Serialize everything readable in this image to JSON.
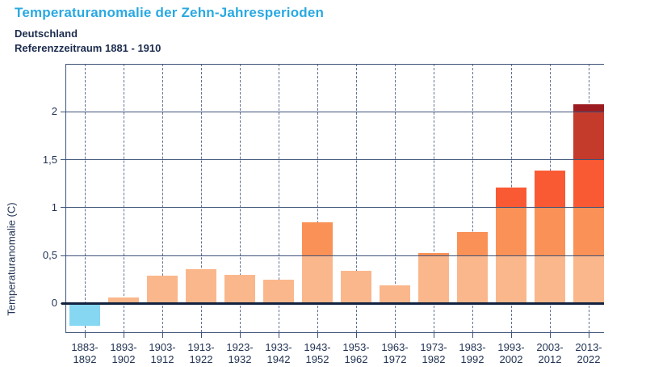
{
  "header": {
    "title": "Temperaturanomalie der Zehn-Jahresperioden",
    "region": "Deutschland",
    "reference": "Referenzzeitraum 1881 - 1910"
  },
  "chart_data": {
    "type": "bar",
    "title": "Temperaturanomalie der Zehn-Jahresperioden",
    "subtitle": "Deutschland, Referenzzeitraum 1881 - 1910",
    "xlabel": "",
    "ylabel": "Temperaturanomalie (C)",
    "grid": "on",
    "legend": "none",
    "ylim": [
      -0.3,
      2.5
    ],
    "ytick_values": [
      0,
      0.5,
      1,
      1.5,
      2
    ],
    "ytick_labels": [
      "0",
      "0,5",
      "1",
      "1,5",
      "2"
    ],
    "categories": [
      "1883-1892",
      "1893-1902",
      "1903-1912",
      "1913-1922",
      "1923-1932",
      "1933-1942",
      "1943-1952",
      "1953-1962",
      "1963-1972",
      "1973-1982",
      "1983-1992",
      "1993-2002",
      "2003-2012",
      "2013-2022"
    ],
    "values": [
      -0.23,
      0.06,
      0.29,
      0.36,
      0.3,
      0.25,
      0.85,
      0.34,
      0.19,
      0.53,
      0.75,
      1.21,
      1.39,
      2.08
    ],
    "colors": {
      "title": "#29A9E1",
      "text": "#233454",
      "negative": "#86D7F2",
      "bands": [
        {
          "max": 0.5,
          "color": "#FBB78C"
        },
        {
          "max": 1.0,
          "color": "#FA9157"
        },
        {
          "max": 1.5,
          "color": "#F95A33"
        },
        {
          "max": 2.0,
          "color": "#C43A2B"
        },
        {
          "max": 9.9,
          "color": "#9C1B20"
        }
      ]
    }
  }
}
